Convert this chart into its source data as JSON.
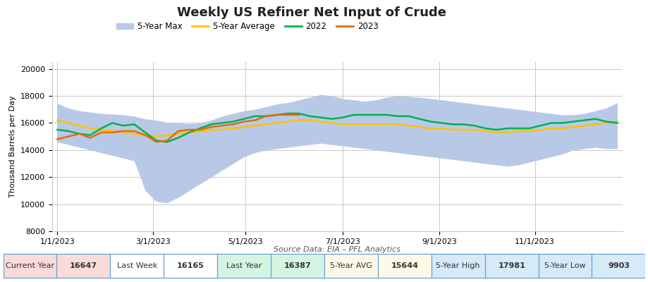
{
  "title": "Weekly US Refiner Net Input of Crude",
  "ylabel": "Thousand Barrels per Day",
  "source": "Source Data: EIA – PFL Analytics",
  "ylim": [
    8000,
    20500
  ],
  "yticks": [
    8000,
    10000,
    12000,
    14000,
    16000,
    18000,
    20000
  ],
  "bg_color": "#ffffff",
  "plot_bg": "#ffffff",
  "grid_color": "#c8c8c8",
  "band_color": "#b8c9e8",
  "band_alpha": 1.0,
  "avg_color": "#FFC000",
  "yr2022_color": "#00B050",
  "yr2023_color": "#E36C09",
  "five_year_max": [
    17450,
    17100,
    16900,
    16800,
    16700,
    16650,
    16600,
    16500,
    16300,
    16200,
    16050,
    16000,
    15950,
    16000,
    16200,
    16500,
    16700,
    16900,
    17000,
    17200,
    17400,
    17500,
    17700,
    17900,
    18100,
    18000,
    17800,
    17700,
    17600,
    17700,
    17900,
    18000,
    17950,
    17900,
    17800,
    17700,
    17600,
    17500,
    17400,
    17300,
    17200,
    17100,
    17000,
    16900,
    16800,
    16700,
    16600,
    16600,
    16700,
    16900,
    17100,
    17500
  ],
  "five_year_min": [
    14600,
    14400,
    14200,
    14000,
    13800,
    13600,
    13400,
    13200,
    11000,
    10200,
    10100,
    10500,
    11000,
    11500,
    12000,
    12500,
    13000,
    13500,
    13800,
    14000,
    14100,
    14200,
    14300,
    14400,
    14500,
    14400,
    14300,
    14200,
    14100,
    14000,
    13900,
    13800,
    13700,
    13600,
    13500,
    13400,
    13300,
    13200,
    13100,
    13000,
    12900,
    12800,
    12900,
    13100,
    13300,
    13500,
    13700,
    14000,
    14100,
    14200,
    14100,
    14100
  ],
  "five_year_avg": [
    16200,
    16000,
    15800,
    15600,
    15500,
    15400,
    15300,
    15200,
    15100,
    15000,
    15100,
    15200,
    15300,
    15400,
    15500,
    15500,
    15600,
    15700,
    15800,
    15900,
    16000,
    16100,
    16200,
    16200,
    16100,
    16000,
    15900,
    15900,
    15900,
    15900,
    15900,
    15900,
    15800,
    15700,
    15600,
    15600,
    15500,
    15500,
    15500,
    15400,
    15300,
    15300,
    15400,
    15400,
    15500,
    15600,
    15600,
    15700,
    15800,
    15900,
    16000,
    16100
  ],
  "yr2022": [
    15500,
    15400,
    15200,
    15100,
    15600,
    16000,
    15800,
    15900,
    15300,
    14700,
    14600,
    14900,
    15300,
    15600,
    15900,
    16000,
    16100,
    16300,
    16500,
    16500,
    16600,
    16700,
    16700,
    16500,
    16400,
    16300,
    16400,
    16600,
    16600,
    16600,
    16600,
    16500,
    16500,
    16300,
    16100,
    16000,
    15900,
    15900,
    15800,
    15600,
    15500,
    15600,
    15600,
    15600,
    15800,
    16000,
    16000,
    16100,
    16200,
    16300,
    16100,
    16000
  ],
  "yr2023": [
    14800,
    15000,
    15200,
    14900,
    15300,
    15300,
    15400,
    15400,
    15100,
    14600,
    14700,
    15400,
    15500,
    15500,
    15700,
    15800,
    15900,
    16100,
    16200,
    16500,
    16600,
    16600,
    16600,
    null,
    null,
    null,
    null,
    null,
    null,
    null,
    null,
    null,
    null,
    null,
    null,
    null,
    null,
    null,
    null,
    null,
    null,
    null,
    null,
    null,
    null,
    null,
    null,
    null,
    null,
    null,
    null,
    null
  ],
  "xtick_labels": [
    "1/1/2023",
    "3/1/2023",
    "5/1/2023",
    "7/1/2023",
    "9/1/2023",
    "11/1/2023"
  ],
  "xtick_positions": [
    0,
    8.7,
    17.1,
    26.0,
    34.8,
    43.5
  ],
  "footer_labels": [
    "Current Year",
    "16647",
    "Last Week",
    "16165",
    "Last Year",
    "16387",
    "5-Year AVG",
    "15644",
    "5-Year High",
    "17981",
    "5-Year Low",
    "9903"
  ],
  "footer_bg_colors": [
    "#FADBD8",
    "#FADBD8",
    "#ffffff",
    "#ffffff",
    "#D5F5E3",
    "#D5F5E3",
    "#FEF9E7",
    "#FEF9E7",
    "#D6EAF8",
    "#D6EAF8",
    "#D6EAF8",
    "#D6EAF8"
  ],
  "footer_border_color": "#5B9BD5"
}
